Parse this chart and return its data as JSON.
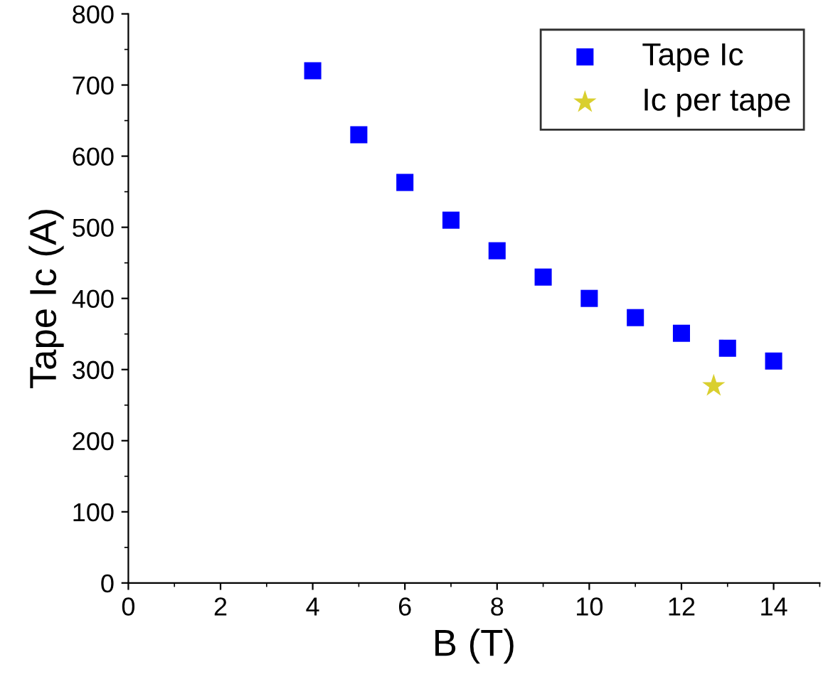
{
  "chart_data": {
    "type": "scatter",
    "xlabel": "B (T)",
    "ylabel": "Tape Ic (A)",
    "xlim": [
      0,
      15
    ],
    "xticks": [
      0,
      2,
      4,
      6,
      8,
      10,
      12,
      14
    ],
    "ylim": [
      0,
      800
    ],
    "yticks": [
      0,
      100,
      200,
      300,
      400,
      500,
      600,
      700,
      800
    ],
    "grid": false,
    "legend": "top right",
    "series": [
      {
        "name": "Tape Ic",
        "color": "#0000ff",
        "marker": "square",
        "x": [
          4,
          5,
          6,
          7,
          8,
          9,
          10,
          11,
          12,
          13,
          14
        ],
        "values": [
          720,
          630,
          563,
          510,
          467,
          430,
          400,
          373,
          351,
          330,
          312
        ]
      },
      {
        "name": "Ic per tape",
        "color": "#d9cf2f",
        "marker": "star",
        "x": [
          12.7
        ],
        "values": [
          277
        ]
      }
    ]
  }
}
